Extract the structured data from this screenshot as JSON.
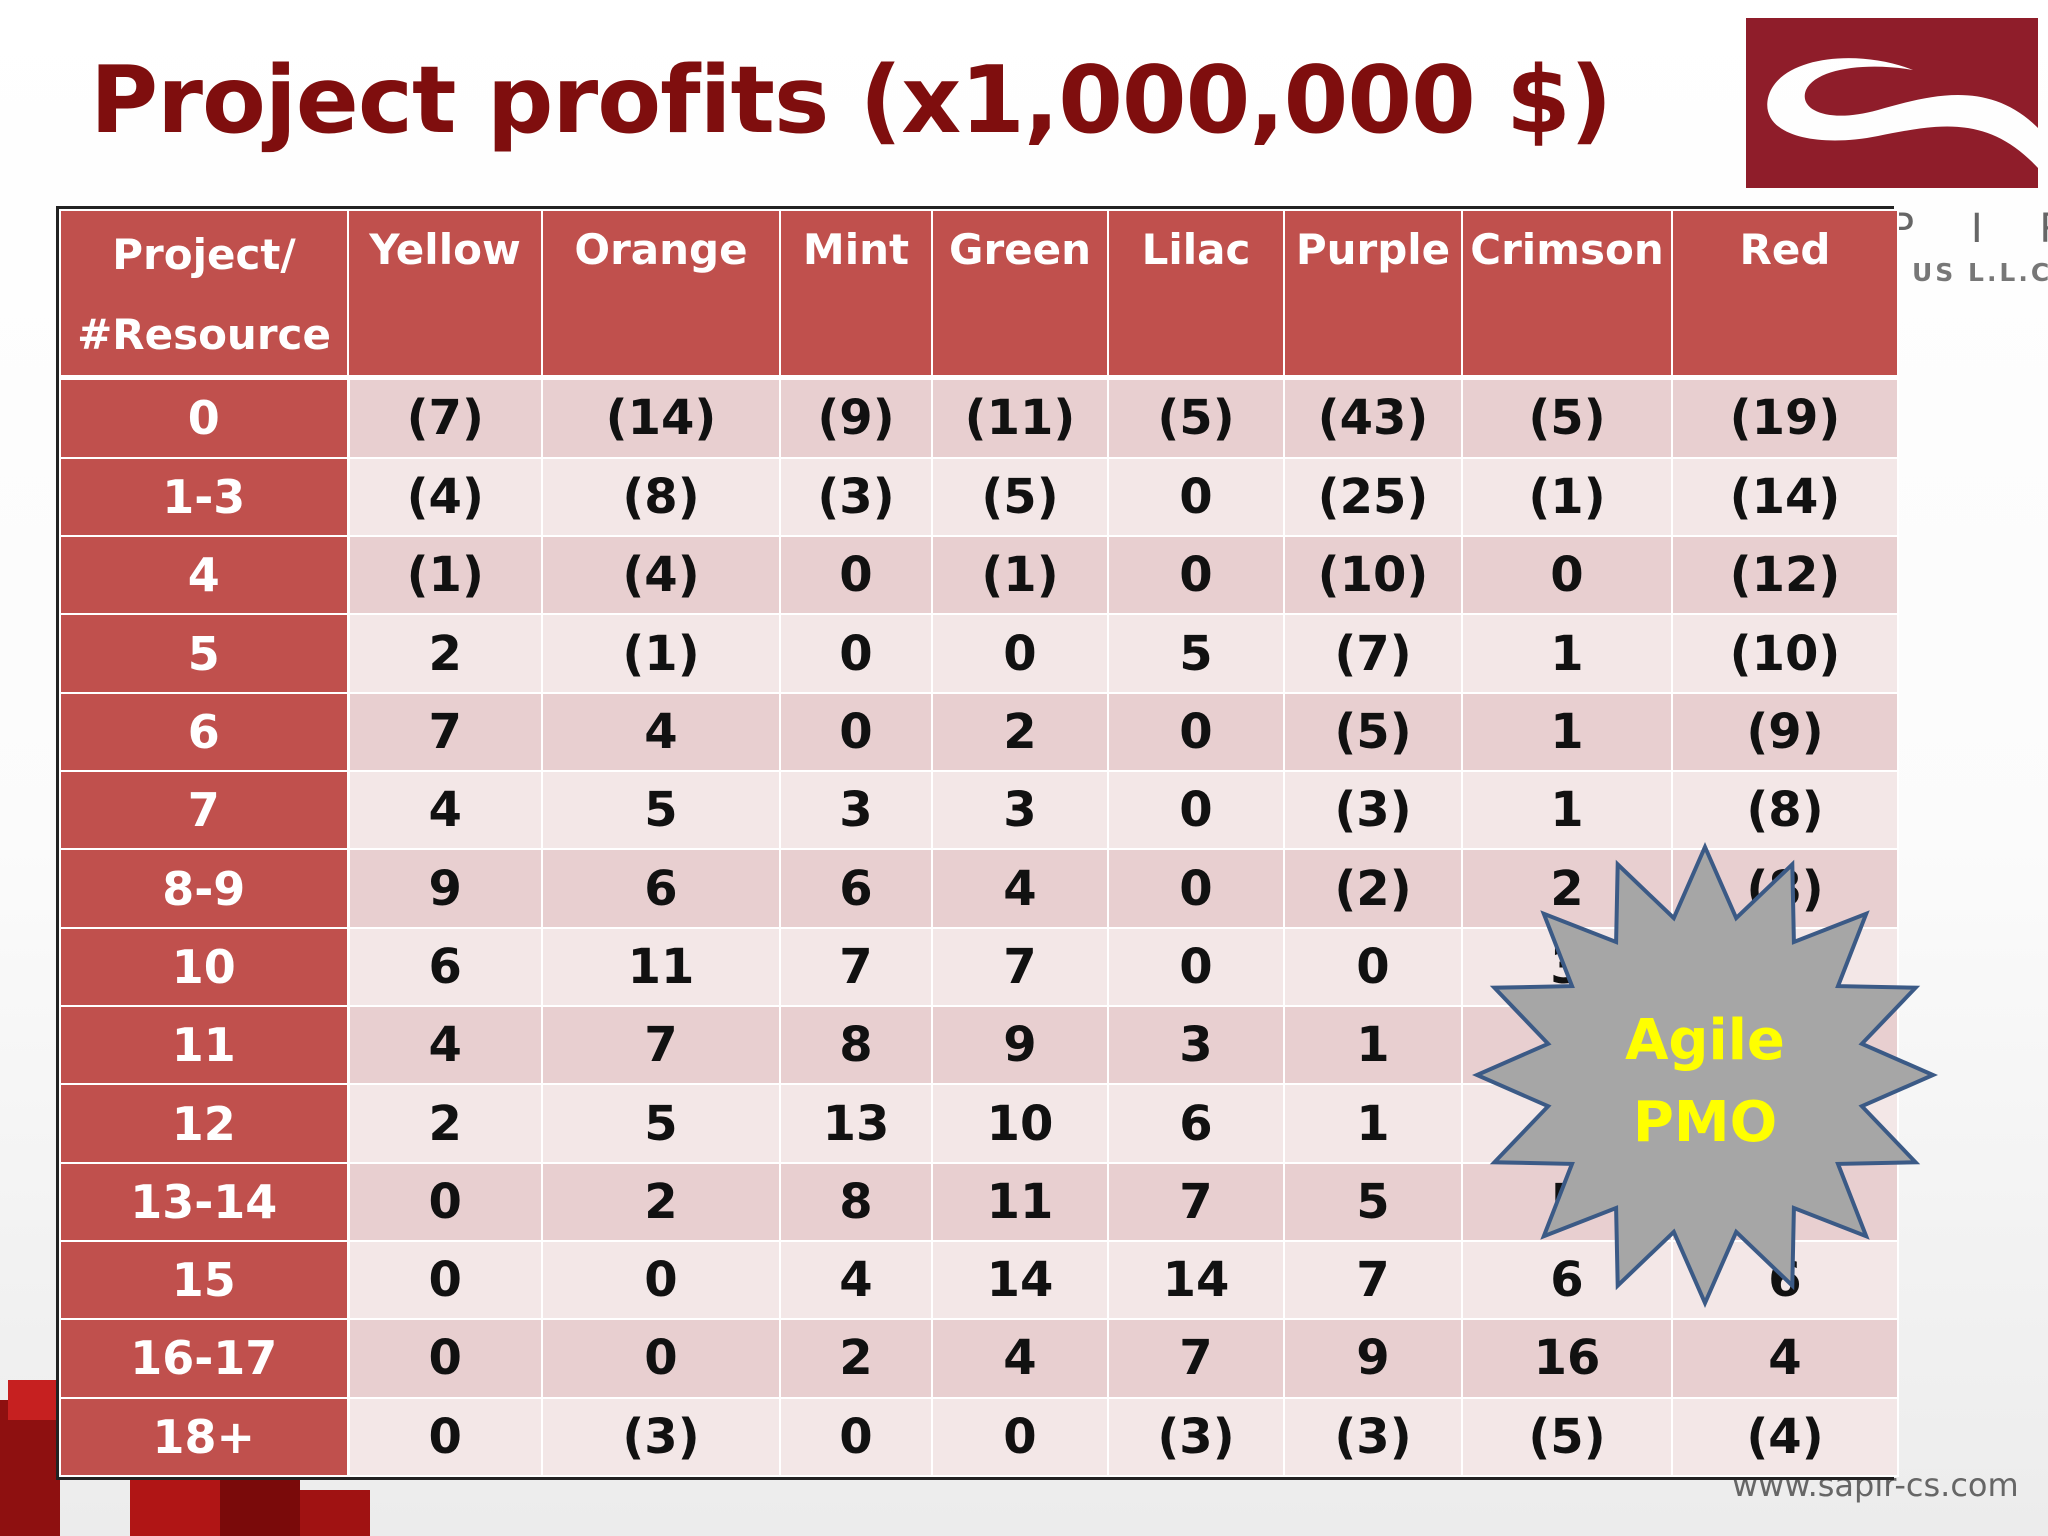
{
  "title": "Project profits (x1,000,000 $)",
  "logo": {
    "letters": "P I R",
    "subtitle": "US L.L.C"
  },
  "website": "www.sapir-cs.com",
  "badge": {
    "line1": "Agile",
    "line2": "PMO"
  },
  "table": {
    "corner_line1": "Project/",
    "corner_line2": "#Resource",
    "columns": [
      "Yellow",
      "Orange",
      "Mint",
      "Green",
      "Lilac",
      "Purple",
      "Crimson",
      "Red"
    ],
    "rows": [
      {
        "label": "0",
        "cells": [
          "(7)",
          "(14)",
          "(9)",
          "(11)",
          "(5)",
          "(43)",
          "(5)",
          "(19)"
        ]
      },
      {
        "label": "1-3",
        "cells": [
          "(4)",
          "(8)",
          "(3)",
          "(5)",
          "0",
          "(25)",
          "(1)",
          "(14)"
        ]
      },
      {
        "label": "4",
        "cells": [
          "(1)",
          "(4)",
          "0",
          "(1)",
          "0",
          "(10)",
          "0",
          "(12)"
        ]
      },
      {
        "label": "5",
        "cells": [
          "2",
          "(1)",
          "0",
          "0",
          "5",
          "(7)",
          "1",
          "(10)"
        ]
      },
      {
        "label": "6",
        "cells": [
          "7",
          "4",
          "0",
          "2",
          "0",
          "(5)",
          "1",
          "(9)"
        ]
      },
      {
        "label": "7",
        "cells": [
          "4",
          "5",
          "3",
          "3",
          "0",
          "(3)",
          "1",
          "(8)"
        ]
      },
      {
        "label": "8-9",
        "cells": [
          "9",
          "6",
          "6",
          "4",
          "0",
          "(2)",
          "2",
          "(8)"
        ]
      },
      {
        "label": "10",
        "cells": [
          "6",
          "11",
          "7",
          "7",
          "0",
          "0",
          "3",
          ""
        ]
      },
      {
        "label": "11",
        "cells": [
          "4",
          "7",
          "8",
          "9",
          "3",
          "1",
          "",
          ""
        ]
      },
      {
        "label": "12",
        "cells": [
          "2",
          "5",
          "13",
          "10",
          "6",
          "1",
          "",
          ""
        ]
      },
      {
        "label": "13-14",
        "cells": [
          "0",
          "2",
          "8",
          "11",
          "7",
          "5",
          "5",
          ""
        ]
      },
      {
        "label": "15",
        "cells": [
          "0",
          "0",
          "4",
          "14",
          "14",
          "7",
          "6",
          "6"
        ]
      },
      {
        "label": "16-17",
        "cells": [
          "0",
          "0",
          "2",
          "4",
          "7",
          "9",
          "16",
          "4"
        ]
      },
      {
        "label": "18+",
        "cells": [
          "0",
          "(3)",
          "0",
          "0",
          "(3)",
          "(3)",
          "(5)",
          "(4)"
        ]
      }
    ]
  },
  "colors": {
    "title": "#7f0e0e",
    "header": "#c0504d",
    "row_dark": "#e8cfd0",
    "row_light": "#f3e7e7",
    "badge_fill": "#a6a6a6",
    "badge_stroke": "#3b5a86",
    "badge_text": "#ffff00"
  }
}
